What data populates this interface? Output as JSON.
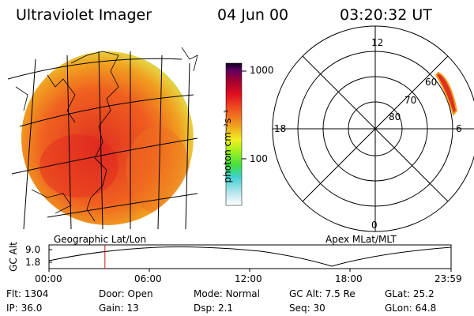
{
  "header": {
    "title": "Ultraviolet Imager",
    "date": "04 Jun 00",
    "time": "03:20:32 UT"
  },
  "colorbar": {
    "unit_label": "photon cm⁻²s⁻¹",
    "ticks": [
      "1000",
      "100"
    ]
  },
  "polar": {
    "mlt_labels": {
      "top": "12",
      "left": "18",
      "right": "6",
      "bottom": "0"
    },
    "lat_labels": [
      "60",
      "70",
      "80"
    ]
  },
  "panel_labels": {
    "left": "Geographic Lat/Lon",
    "right": "Apex MLat/MLT"
  },
  "altitude_plot": {
    "ylabel": "GC Alt",
    "yticks": [
      "9.0",
      "1.8"
    ],
    "xticks": [
      "00:00",
      "06:00",
      "12:00",
      "18:00",
      "23:59"
    ],
    "current_time_hours": 3.34
  },
  "info": {
    "flt_label": "Flt:",
    "flt_value": "1304",
    "door_label": "Door:",
    "door_value": "Open",
    "mode_label": "Mode:",
    "mode_value": "Normal",
    "gcalt_label": "GC Alt:",
    "gcalt_value": "7.5 Re",
    "glat_label": "GLat:",
    "glat_value": "25.2",
    "ip_label": "IP:",
    "ip_value": "36.0",
    "gain_label": "Gain:",
    "gain_value": "13",
    "dsp_label": "Dsp:",
    "dsp_value": "2.1",
    "seq_label": "Seq:",
    "seq_value": "30",
    "glon_label": "GLon:",
    "glon_value": "64.8"
  },
  "colors": {
    "orange": "#f0a020",
    "red": "#e02020",
    "green": "#80e040",
    "marker": "#d01010"
  }
}
